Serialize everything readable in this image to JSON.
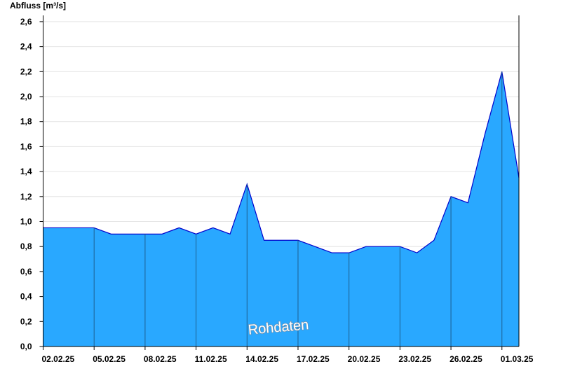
{
  "chart_data": {
    "type": "area",
    "y_label": "Abfluss [m³/s]",
    "annotation": "Rohdaten",
    "x": [
      "02.02.25",
      "03.02.25",
      "04.02.25",
      "05.02.25",
      "06.02.25",
      "07.02.25",
      "08.02.25",
      "09.02.25",
      "10.02.25",
      "11.02.25",
      "12.02.25",
      "13.02.25",
      "14.02.25",
      "15.02.25",
      "16.02.25",
      "17.02.25",
      "18.02.25",
      "19.02.25",
      "20.02.25",
      "21.02.25",
      "22.02.25",
      "23.02.25",
      "24.02.25",
      "25.02.25",
      "26.02.25",
      "27.02.25",
      "28.02.25",
      "01.03.25",
      "02.03.25"
    ],
    "series": [
      {
        "name": "Abfluss",
        "color": "#29a8ff",
        "line_color": "#0000cc",
        "values": [
          0.95,
          0.95,
          0.95,
          0.95,
          0.9,
          0.9,
          0.9,
          0.9,
          0.95,
          0.9,
          0.95,
          0.9,
          1.3,
          0.85,
          0.85,
          0.85,
          0.8,
          0.75,
          0.75,
          0.8,
          0.8,
          0.8,
          0.75,
          0.85,
          1.2,
          1.15,
          1.7,
          2.2,
          1.35
        ]
      }
    ],
    "ylim": [
      0,
      2.65
    ],
    "yticks": [
      {
        "value": 0,
        "label": "0,0"
      },
      {
        "value": 0.2,
        "label": "0,2"
      },
      {
        "value": 0.4,
        "label": "0,4"
      },
      {
        "value": 0.6,
        "label": "0,6"
      },
      {
        "value": 0.8,
        "label": "0,8"
      },
      {
        "value": 1.0,
        "label": "1,0"
      },
      {
        "value": 1.2,
        "label": "1,2"
      },
      {
        "value": 1.4,
        "label": "1,4"
      },
      {
        "value": 1.6,
        "label": "1,6"
      },
      {
        "value": 1.8,
        "label": "1,8"
      },
      {
        "value": 2.0,
        "label": "2,0"
      },
      {
        "value": 2.2,
        "label": "2,2"
      },
      {
        "value": 2.4,
        "label": "2,4"
      },
      {
        "value": 2.6,
        "label": "2,6"
      }
    ],
    "xtick_every": 3,
    "grid": true
  }
}
